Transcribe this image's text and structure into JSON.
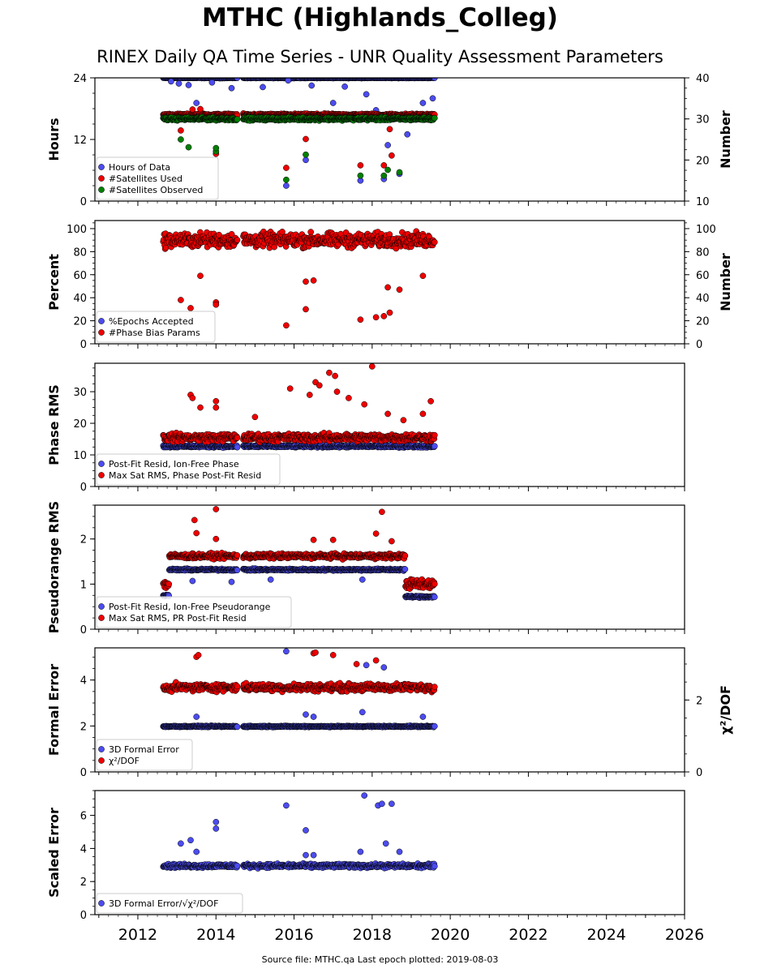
{
  "title": "MTHC (Highlands_Colleg)",
  "subtitle": "RINEX Daily QA Time Series - UNR Quality Assessment Parameters",
  "footer": "Source file: MTHC.qa Last epoch plotted: 2019-08-03",
  "colors": {
    "blue": "#4c4cf0",
    "red": "#ee0000",
    "green": "#008000"
  },
  "chart_data": [
    {
      "type": "scatter",
      "ylabel": "Hours",
      "ylabel_right": "Number",
      "ylim": [
        0,
        24
      ],
      "yticks": [
        0,
        12,
        24
      ],
      "ylim_right": [
        10,
        40
      ],
      "yticks_right": [
        10,
        20,
        30,
        40
      ],
      "legend": "bottom-left",
      "series": [
        {
          "name": "Hours of Data",
          "color": "blue",
          "axis": "left",
          "base": 24,
          "spread": 0.1,
          "outliers": [
            [
              2012.85,
              23.3
            ],
            [
              2013.05,
              22.9
            ],
            [
              2013.3,
              22.6
            ],
            [
              2013.5,
              19.1
            ],
            [
              2013.9,
              23.1
            ],
            [
              2014.4,
              22.0
            ],
            [
              2015.2,
              22.2
            ],
            [
              2015.8,
              3.0
            ],
            [
              2015.85,
              23.5
            ],
            [
              2016.3,
              8.0
            ],
            [
              2016.45,
              22.5
            ],
            [
              2017.0,
              19.1
            ],
            [
              2017.3,
              22.3
            ],
            [
              2017.7,
              4.0
            ],
            [
              2017.85,
              20.8
            ],
            [
              2018.1,
              17.7
            ],
            [
              2018.3,
              4.3
            ],
            [
              2018.4,
              10.9
            ],
            [
              2018.7,
              5.3
            ],
            [
              2018.9,
              13.0
            ],
            [
              2019.3,
              19.1
            ],
            [
              2019.55,
              20.0
            ]
          ]
        },
        {
          "name": "#Satellites Used",
          "color": "red",
          "axis": "right",
          "base": 31,
          "spread": 0.4,
          "outliers": [
            [
              2013.1,
              27.2
            ],
            [
              2013.4,
              32.3
            ],
            [
              2013.6,
              32.4
            ],
            [
              2014.0,
              21.5
            ],
            [
              2015.8,
              18.1
            ],
            [
              2016.3,
              25.1
            ],
            [
              2017.7,
              18.7
            ],
            [
              2018.3,
              18.7
            ],
            [
              2018.45,
              27.5
            ],
            [
              2018.5,
              21.1
            ]
          ]
        },
        {
          "name": "#Satellites Observed",
          "color": "green",
          "axis": "right",
          "base": 30,
          "spread": 0.5,
          "outliers": [
            [
              2013.1,
              25.0
            ],
            [
              2013.3,
              23.1
            ],
            [
              2014.0,
              22.1
            ],
            [
              2014.0,
              22.9
            ],
            [
              2015.8,
              15.2
            ],
            [
              2016.3,
              21.3
            ],
            [
              2017.7,
              16.2
            ],
            [
              2018.3,
              16.2
            ],
            [
              2018.4,
              17.6
            ],
            [
              2018.7,
              17.0
            ]
          ]
        }
      ]
    },
    {
      "type": "scatter",
      "ylabel": "Percent",
      "ylabel_right": "Number",
      "ylim": [
        0,
        107
      ],
      "yticks": [
        0,
        20,
        40,
        60,
        80,
        100
      ],
      "ylim_right": [
        0,
        107
      ],
      "yticks_right": [
        0,
        20,
        40,
        60,
        80,
        100
      ],
      "legend": "bottom-left",
      "series": [
        {
          "name": "%Epochs Accepted",
          "color": "blue",
          "axis": "left",
          "base": 98,
          "spread": 1,
          "hidden": true,
          "outliers": []
        },
        {
          "name": "#Phase Bias Params",
          "color": "red",
          "axis": "right",
          "base": 90,
          "spread": 9,
          "outliers": [
            [
              2013.1,
              38
            ],
            [
              2013.35,
              31
            ],
            [
              2013.6,
              59
            ],
            [
              2014.0,
              36
            ],
            [
              2014.0,
              34
            ],
            [
              2015.8,
              16
            ],
            [
              2016.3,
              30
            ],
            [
              2016.3,
              54
            ],
            [
              2016.5,
              55
            ],
            [
              2017.7,
              21
            ],
            [
              2018.1,
              23
            ],
            [
              2018.3,
              24
            ],
            [
              2018.4,
              49
            ],
            [
              2018.45,
              27
            ],
            [
              2018.7,
              47
            ],
            [
              2019.3,
              59
            ]
          ]
        }
      ]
    },
    {
      "type": "scatter",
      "ylabel": "Phase RMS",
      "ylim": [
        0,
        39
      ],
      "yticks": [
        0,
        10,
        20,
        30
      ],
      "legend": "bottom-left",
      "series": [
        {
          "name": "Post-Fit Resid, Ion-Free Phase",
          "color": "blue",
          "axis": "left",
          "base": 12.7,
          "spread": 0.5,
          "outliers": []
        },
        {
          "name": "Max Sat RMS, Phase Post-Fit Resid",
          "color": "red",
          "axis": "left",
          "base": 15.5,
          "spread": 1.8,
          "outliers": [
            [
              2013.35,
              29
            ],
            [
              2013.4,
              28
            ],
            [
              2013.6,
              25
            ],
            [
              2014.0,
              27
            ],
            [
              2014.0,
              25
            ],
            [
              2015.0,
              22
            ],
            [
              2015.9,
              31
            ],
            [
              2016.4,
              29
            ],
            [
              2016.55,
              33
            ],
            [
              2016.65,
              32
            ],
            [
              2016.9,
              36
            ],
            [
              2017.05,
              35
            ],
            [
              2017.1,
              30
            ],
            [
              2017.4,
              28
            ],
            [
              2017.8,
              26
            ],
            [
              2018.0,
              38
            ],
            [
              2018.4,
              23
            ],
            [
              2018.8,
              21
            ],
            [
              2019.3,
              23
            ],
            [
              2019.5,
              27
            ]
          ]
        }
      ]
    },
    {
      "type": "scatter",
      "ylabel": "Pseudorange RMS",
      "ylim": [
        0,
        2.75
      ],
      "yticks": [
        0,
        1,
        2
      ],
      "legend": "bottom-left",
      "series": [
        {
          "name": "Post-Fit Resid, Ion-Free Pseudorange",
          "color": "blue",
          "axis": "left",
          "base": 1.32,
          "spread": 0.03,
          "segments": [
            [
              2012.65,
              2012.8,
              0.75,
              0.02
            ],
            [
              2018.85,
              2019.6,
              0.72,
              0.03
            ]
          ],
          "outliers": [
            [
              2013.4,
              1.07
            ],
            [
              2014.4,
              1.05
            ],
            [
              2015.4,
              1.1
            ],
            [
              2017.75,
              1.1
            ]
          ]
        },
        {
          "name": "Max Sat RMS, PR Post-Fit Resid",
          "color": "red",
          "axis": "left",
          "base": 1.62,
          "spread": 0.08,
          "segments": [
            [
              2012.65,
              2012.8,
              1.0,
              0.15
            ],
            [
              2018.85,
              2019.6,
              1.0,
              0.15
            ]
          ],
          "outliers": [
            [
              2013.45,
              2.42
            ],
            [
              2013.5,
              2.13
            ],
            [
              2014.0,
              2.66
            ],
            [
              2014.0,
              2.0
            ],
            [
              2016.5,
              1.98
            ],
            [
              2017.0,
              1.98
            ],
            [
              2018.1,
              2.12
            ],
            [
              2018.25,
              2.6
            ],
            [
              2018.5,
              1.95
            ]
          ]
        }
      ]
    },
    {
      "type": "scatter",
      "ylabel": "Formal Error",
      "ylabel_right": "χ²/DOF",
      "ylim": [
        0,
        5.4
      ],
      "yticks": [
        0,
        2,
        4
      ],
      "ylim_right": [
        0,
        3.45
      ],
      "yticks_right": [
        0,
        2
      ],
      "legend": "bottom-left",
      "series": [
        {
          "name": "3D Formal Error",
          "color": "blue",
          "axis": "left",
          "base": 1.98,
          "spread": 0.04,
          "outliers": [
            [
              2013.5,
              2.4
            ],
            [
              2015.8,
              5.25
            ],
            [
              2016.3,
              2.5
            ],
            [
              2016.5,
              2.4
            ],
            [
              2017.75,
              2.6
            ],
            [
              2017.85,
              4.65
            ],
            [
              2018.3,
              4.55
            ],
            [
              2019.3,
              2.4
            ]
          ]
        },
        {
          "name": "χ²/DOF",
          "color": "red",
          "axis": "right",
          "base": 2.35,
          "spread": 0.15,
          "outliers": [
            [
              2013.5,
              3.2
            ],
            [
              2013.55,
              3.25
            ],
            [
              2016.5,
              3.3
            ],
            [
              2016.55,
              3.32
            ],
            [
              2017.0,
              3.25
            ],
            [
              2017.6,
              3.0
            ],
            [
              2018.1,
              3.1
            ]
          ]
        }
      ]
    },
    {
      "type": "scatter",
      "ylabel": "Scaled Error",
      "ylim": [
        0,
        7.5
      ],
      "yticks": [
        0,
        2,
        4,
        6
      ],
      "legend": "bottom-left",
      "series": [
        {
          "name": "3D Formal Error/√χ²/DOF",
          "color": "blue",
          "axis": "left",
          "base": 2.95,
          "spread": 0.17,
          "outliers": [
            [
              2013.1,
              4.3
            ],
            [
              2013.35,
              4.5
            ],
            [
              2013.5,
              3.8
            ],
            [
              2014.0,
              5.6
            ],
            [
              2014.0,
              5.2
            ],
            [
              2015.8,
              6.6
            ],
            [
              2016.3,
              5.1
            ],
            [
              2016.3,
              3.6
            ],
            [
              2016.5,
              3.6
            ],
            [
              2017.7,
              3.8
            ],
            [
              2017.8,
              7.2
            ],
            [
              2018.15,
              6.6
            ],
            [
              2018.25,
              6.7
            ],
            [
              2018.35,
              4.3
            ],
            [
              2018.5,
              6.7
            ],
            [
              2018.7,
              3.8
            ]
          ]
        }
      ]
    }
  ],
  "x_axis": {
    "xlim": [
      2010.9,
      2026.0
    ],
    "ticks": [
      "2012",
      "2014",
      "2016",
      "2018",
      "2020",
      "2022",
      "2024",
      "2026"
    ],
    "data_range": [
      2012.65,
      2019.6
    ],
    "gap": [
      2014.55,
      2014.7
    ]
  }
}
